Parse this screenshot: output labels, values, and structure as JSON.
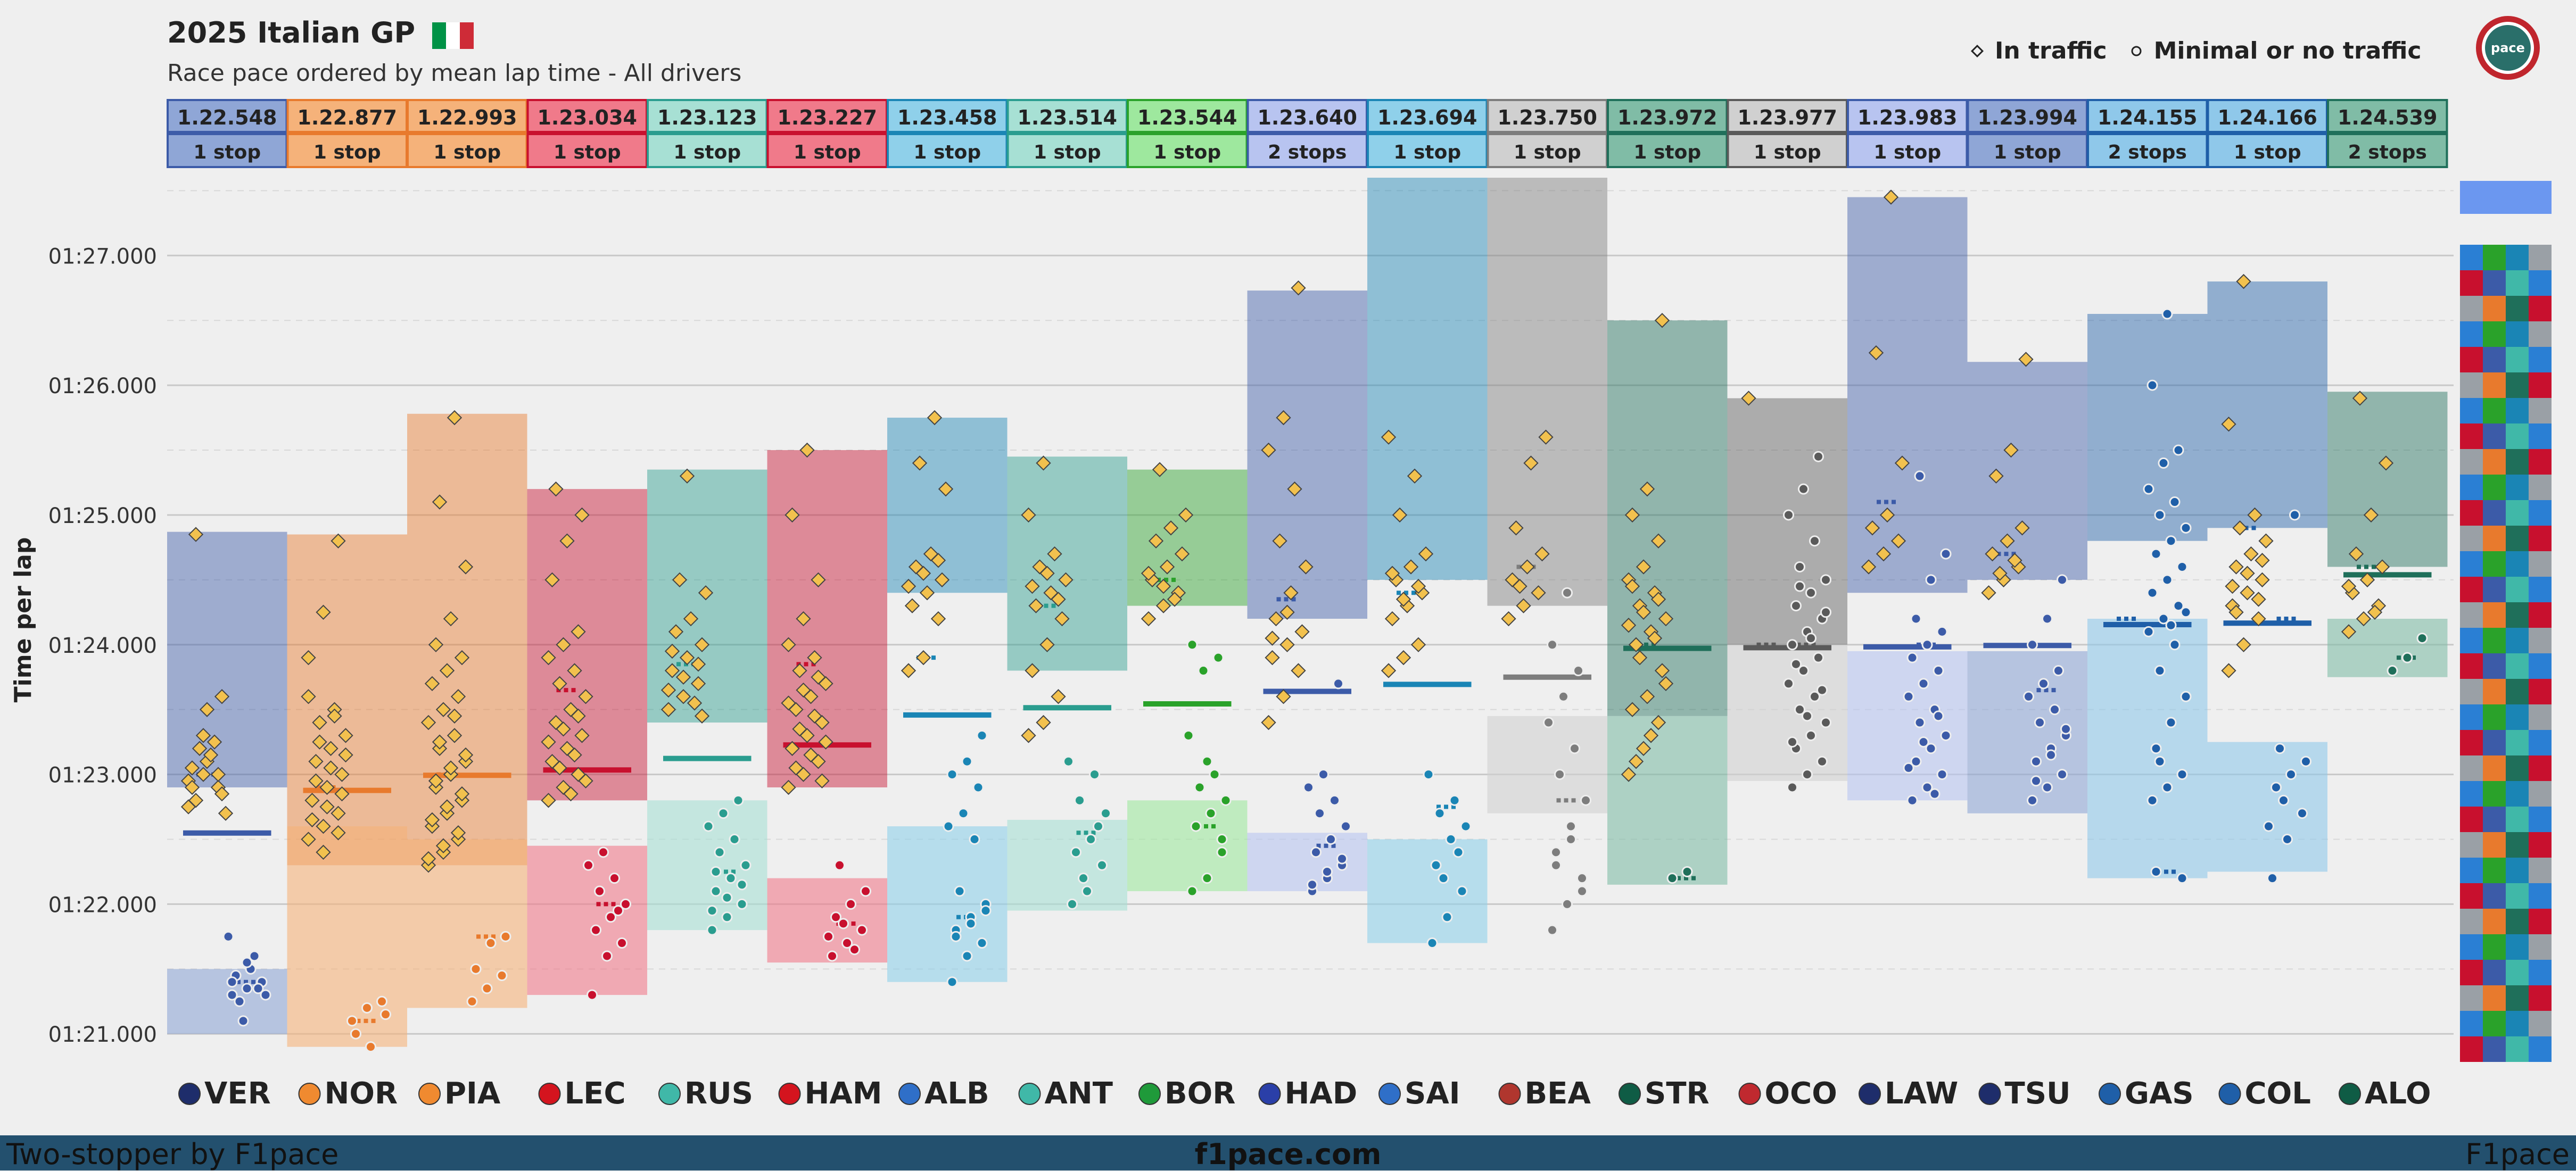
{
  "header": {
    "title": "2025 Italian GP",
    "subtitle": "Race pace ordered by mean lap time - All drivers",
    "flag_colors": [
      "#009246",
      "#ffffff",
      "#ce2b37"
    ]
  },
  "legend": {
    "in_traffic": "In traffic",
    "no_traffic": "Minimal or no traffic"
  },
  "footer": {
    "left": "Two-stopper by F1pace",
    "center": "f1pace.com",
    "right": "F1pace"
  },
  "chart_data": {
    "type": "scatter",
    "ylabel": "Time per lap",
    "ylim_seconds": [
      80.8,
      87.6
    ],
    "yticks": [
      {
        "v": 81,
        "label": "01:21.000"
      },
      {
        "v": 82,
        "label": "01:22.000"
      },
      {
        "v": 83,
        "label": "01:23.000"
      },
      {
        "v": 84,
        "label": "01:24.000"
      },
      {
        "v": 85,
        "label": "01:25.000"
      },
      {
        "v": 86,
        "label": "01:26.000"
      },
      {
        "v": 87,
        "label": "01:27.000"
      }
    ],
    "drivers": [
      {
        "code": "VER",
        "mean": "1.22.548",
        "stops": "1 stop",
        "color": "#3c5ba8",
        "hdr": "#8fa6d6",
        "logo": "#1e2d6b",
        "mean_s": 82.548,
        "traffic": [
          82.95,
          83.0,
          82.9,
          83.05,
          83.1,
          82.85,
          82.8,
          83.15,
          82.7,
          83.2,
          83.25,
          82.75,
          83.3,
          83.0,
          82.9,
          83.5,
          83.6,
          84.85
        ],
        "clear": [
          81.3,
          81.35,
          81.4,
          81.45,
          81.5,
          81.3,
          81.25,
          81.6,
          81.75,
          81.1,
          81.35,
          81.4,
          81.55
        ],
        "tb_min": 82.9,
        "tb_max": 84.87,
        "cb_min": 81.0,
        "cb_max": 81.5,
        "t_mean": 83.0,
        "c_mean": 81.4
      },
      {
        "code": "NOR",
        "mean": "1.22.877",
        "stops": "1 stop",
        "color": "#e87a2d",
        "hdr": "#f5b27a",
        "logo": "#f08a30",
        "mean_s": 82.877,
        "traffic": [
          82.5,
          82.6,
          82.7,
          82.8,
          82.9,
          83.0,
          83.1,
          83.2,
          83.3,
          83.4,
          83.5,
          83.6,
          82.4,
          82.55,
          82.65,
          82.75,
          82.85,
          82.95,
          83.05,
          83.15,
          83.25,
          83.45,
          83.9,
          84.25,
          84.8
        ],
        "clear": [
          81.1,
          81.2,
          81.25,
          81.0,
          80.9,
          81.15
        ],
        "tb_min": 82.3,
        "tb_max": 84.85,
        "cb_min": 80.9,
        "cb_max": 82.6,
        "t_mean": 82.9,
        "c_mean": 81.1
      },
      {
        "code": "PIA",
        "mean": "1.22.993",
        "stops": "1 stop",
        "color": "#e87a2d",
        "hdr": "#f5b27a",
        "logo": "#f08a30",
        "mean_s": 82.993,
        "traffic": [
          82.3,
          82.4,
          82.5,
          82.6,
          82.7,
          82.8,
          82.9,
          83.0,
          83.1,
          83.2,
          83.3,
          83.4,
          83.5,
          83.6,
          83.7,
          83.8,
          83.9,
          84.0,
          84.2,
          84.6,
          85.1,
          85.75,
          82.35,
          82.45,
          82.55,
          82.65,
          82.75,
          82.85,
          82.95,
          83.05,
          83.15,
          83.25,
          83.45
        ],
        "clear": [
          81.25,
          81.35,
          81.45,
          81.5,
          81.7,
          81.75
        ],
        "tb_min": 82.3,
        "tb_max": 85.78,
        "cb_min": 81.2,
        "cb_max": 82.5,
        "t_mean": 83.0,
        "c_mean": 81.75
      },
      {
        "code": "LEC",
        "mean": "1.23.034",
        "stops": "1 stop",
        "color": "#c8102e",
        "hdr": "#f07a8a",
        "logo": "#d4141e",
        "mean_s": 83.034,
        "traffic": [
          82.8,
          82.9,
          83.0,
          83.1,
          83.2,
          83.3,
          83.4,
          83.5,
          83.6,
          83.7,
          83.8,
          83.9,
          84.0,
          84.1,
          84.5,
          84.8,
          85.0,
          85.2,
          82.85,
          82.95,
          83.05,
          83.15,
          83.25,
          83.35,
          83.45
        ],
        "clear": [
          81.3,
          81.6,
          81.7,
          81.8,
          81.9,
          82.0,
          82.1,
          82.2,
          82.3,
          82.4,
          81.95
        ],
        "tb_min": 82.8,
        "tb_max": 85.2,
        "cb_min": 81.3,
        "cb_max": 82.45,
        "t_mean": 83.65,
        "c_mean": 82.0
      },
      {
        "code": "RUS",
        "mean": "1.23.123",
        "stops": "1 stop",
        "color": "#2a9d8f",
        "hdr": "#a7e0d4",
        "logo": "#40b8a8",
        "mean_s": 83.123,
        "traffic": [
          83.5,
          83.6,
          83.7,
          83.8,
          83.9,
          84.0,
          84.1,
          84.2,
          84.4,
          84.5,
          83.55,
          83.65,
          83.75,
          83.85,
          83.95,
          85.3,
          83.45
        ],
        "clear": [
          81.8,
          81.9,
          82.0,
          82.1,
          82.2,
          82.3,
          82.4,
          82.5,
          82.6,
          82.7,
          82.8,
          81.95,
          82.05,
          82.15,
          82.25
        ],
        "tb_min": 83.4,
        "tb_max": 85.35,
        "cb_min": 81.8,
        "cb_max": 82.8,
        "t_mean": 83.85,
        "c_mean": 82.25
      },
      {
        "code": "HAM",
        "mean": "1.23.227",
        "stops": "1 stop",
        "color": "#c8102e",
        "hdr": "#f07a8a",
        "logo": "#d4141e",
        "mean_s": 83.227,
        "traffic": [
          82.9,
          83.0,
          83.1,
          83.2,
          83.3,
          83.4,
          83.5,
          83.6,
          83.7,
          83.8,
          83.9,
          84.0,
          84.2,
          84.5,
          85.0,
          85.5,
          82.95,
          83.05,
          83.15,
          83.25,
          83.35,
          83.45,
          83.55,
          83.65,
          83.75
        ],
        "clear": [
          81.6,
          81.7,
          81.8,
          81.9,
          82.0,
          82.1,
          82.3,
          81.65,
          81.75,
          81.85
        ],
        "tb_min": 82.9,
        "tb_max": 85.5,
        "cb_min": 81.55,
        "cb_max": 82.2,
        "t_mean": 83.85,
        "c_mean": 81.85
      },
      {
        "code": "ALB",
        "mean": "1.23.458",
        "stops": "1 stop",
        "color": "#1a85b5",
        "hdr": "#8fd0ea",
        "logo": "#2f6fc8",
        "mean_s": 83.458,
        "traffic": [
          83.8,
          83.9,
          84.2,
          84.3,
          84.4,
          84.5,
          84.6,
          84.7,
          85.2,
          85.4,
          85.75,
          84.45,
          84.55,
          84.65
        ],
        "clear": [
          81.4,
          81.6,
          81.7,
          81.8,
          81.9,
          82.0,
          82.1,
          82.5,
          82.6,
          82.7,
          82.9,
          83.0,
          83.1,
          83.3,
          81.75,
          81.85,
          81.95
        ],
        "tb_min": 84.4,
        "tb_max": 85.75,
        "cb_min": 81.4,
        "cb_max": 82.6,
        "t_mean": 83.9,
        "c_mean": 81.9
      },
      {
        "code": "ANT",
        "mean": "1.23.514",
        "stops": "1 stop",
        "color": "#2a9d8f",
        "hdr": "#a7e0d4",
        "logo": "#40b8a8",
        "mean_s": 83.514,
        "traffic": [
          83.3,
          83.4,
          83.6,
          83.8,
          84.0,
          84.2,
          84.3,
          84.4,
          84.5,
          84.6,
          84.7,
          85.0,
          85.4,
          84.35,
          84.45,
          84.55
        ],
        "clear": [
          82.0,
          82.1,
          82.3,
          82.4,
          82.5,
          82.7,
          82.8,
          83.0,
          83.1,
          82.2,
          82.6
        ],
        "tb_min": 83.8,
        "tb_max": 85.45,
        "cb_min": 81.95,
        "cb_max": 82.65,
        "t_mean": 84.3,
        "c_mean": 82.55
      },
      {
        "code": "BOR",
        "mean": "1.23.544",
        "stops": "1 stop",
        "color": "#2aa22a",
        "hdr": "#9ee89e",
        "logo": "#1f9a3a",
        "mean_s": 83.544,
        "traffic": [
          84.2,
          84.3,
          84.4,
          84.5,
          84.6,
          84.7,
          84.8,
          84.9,
          85.0,
          85.35,
          84.35,
          84.55,
          84.45
        ],
        "clear": [
          82.1,
          82.2,
          82.4,
          82.6,
          82.7,
          82.8,
          82.9,
          83.0,
          83.3,
          83.8,
          83.9,
          84.0,
          83.1,
          82.5
        ],
        "tb_min": 84.3,
        "tb_max": 85.35,
        "cb_min": 82.1,
        "cb_max": 82.8,
        "t_mean": 84.5,
        "c_mean": 82.6
      },
      {
        "code": "HAD",
        "mean": "1.23.640",
        "stops": "2 stops",
        "color": "#3c5ba8",
        "hdr": "#b8c4f0",
        "logo": "#2a3fa8",
        "mean_s": 83.64,
        "traffic": [
          83.4,
          83.6,
          83.8,
          83.9,
          84.0,
          84.1,
          84.2,
          84.4,
          84.6,
          84.8,
          85.2,
          85.5,
          85.75,
          86.75,
          84.05,
          84.25
        ],
        "clear": [
          82.1,
          82.2,
          82.3,
          82.4,
          82.5,
          82.6,
          82.7,
          82.8,
          82.9,
          83.0,
          83.7,
          82.15,
          82.25,
          82.35
        ],
        "tb_min": 84.2,
        "tb_max": 86.73,
        "cb_min": 82.1,
        "cb_max": 82.55,
        "t_mean": 84.35,
        "c_mean": 82.45
      },
      {
        "code": "SAI",
        "mean": "1.23.694",
        "stops": "1 stop",
        "color": "#1a85b5",
        "hdr": "#8fd0ea",
        "logo": "#2f6fc8",
        "mean_s": 83.694,
        "traffic": [
          83.8,
          83.9,
          84.0,
          84.2,
          84.3,
          84.4,
          84.5,
          84.6,
          84.7,
          85.0,
          85.3,
          85.6,
          84.35,
          84.45,
          84.55
        ],
        "clear": [
          81.7,
          81.9,
          82.1,
          82.3,
          82.5,
          82.6,
          82.7,
          82.8,
          83.0,
          82.2,
          82.4
        ],
        "tb_min": 84.5,
        "tb_max": 87.6,
        "cb_min": 81.7,
        "cb_max": 82.5,
        "t_mean": 84.4,
        "c_mean": 82.75
      },
      {
        "code": "BEA",
        "mean": "1.23.750",
        "stops": "1 stop",
        "color": "#7d7d7d",
        "hdr": "#d0d0d0",
        "logo": "#b0362e",
        "mean_s": 83.75,
        "traffic": [
          84.2,
          84.3,
          84.4,
          84.5,
          84.6,
          84.7,
          84.9,
          85.4,
          85.6,
          84.45
        ],
        "clear": [
          81.8,
          82.0,
          82.2,
          82.4,
          82.6,
          82.8,
          83.0,
          83.2,
          83.4,
          83.6,
          83.8,
          84.0,
          84.4,
          82.1,
          82.3,
          82.5
        ],
        "tb_min": 84.3,
        "tb_max": 87.6,
        "cb_min": 82.7,
        "cb_max": 83.45,
        "t_mean": 84.6,
        "c_mean": 82.8
      },
      {
        "code": "STR",
        "mean": "1.23.972",
        "stops": "1 stop",
        "color": "#1f6f5a",
        "hdr": "#80bca6",
        "logo": "#0f5c45",
        "mean_s": 83.972,
        "traffic": [
          83.0,
          83.2,
          83.4,
          83.5,
          83.6,
          83.8,
          84.0,
          84.1,
          84.2,
          84.3,
          84.4,
          84.5,
          84.6,
          84.8,
          85.0,
          85.2,
          86.5,
          83.1,
          83.3,
          83.7,
          83.9,
          84.05,
          84.15,
          84.25,
          84.35,
          84.45
        ],
        "clear": [
          82.2,
          82.25
        ],
        "tb_min": 83.45,
        "tb_max": 86.5,
        "cb_min": 82.15,
        "cb_max": 83.45,
        "t_mean": 84.0,
        "c_mean": 82.2
      },
      {
        "code": "OCO",
        "mean": "1.23.977",
        "stops": "1 stop",
        "color": "#5a5a5a",
        "hdr": "#d0d0d0",
        "logo": "#c0292f",
        "mean_s": 83.977,
        "traffic": [
          85.9
        ],
        "clear": [
          82.9,
          83.0,
          83.1,
          83.2,
          83.3,
          83.4,
          83.5,
          83.6,
          83.7,
          83.8,
          83.9,
          84.0,
          84.1,
          84.2,
          84.3,
          84.4,
          84.5,
          84.6,
          84.8,
          85.0,
          85.2,
          85.45,
          83.25,
          83.45,
          83.65,
          83.85,
          84.05,
          84.25,
          84.45
        ],
        "tb_min": 84.0,
        "tb_max": 85.9,
        "cb_min": 82.95,
        "cb_max": 84.0,
        "t_mean": 84.0,
        "c_mean": 84.0
      },
      {
        "code": "LAW",
        "mean": "1.23.983",
        "stops": "1 stop",
        "color": "#3c5ba8",
        "hdr": "#b8c4f0",
        "logo": "#1e2d6b",
        "mean_s": 83.983,
        "traffic": [
          84.6,
          84.7,
          84.8,
          84.9,
          85.0,
          85.4,
          86.25,
          87.45
        ],
        "clear": [
          82.8,
          82.9,
          83.0,
          83.1,
          83.2,
          83.3,
          83.4,
          83.5,
          83.6,
          83.7,
          83.8,
          83.9,
          84.0,
          84.1,
          84.2,
          84.5,
          84.7,
          85.3,
          82.85,
          83.05,
          83.25,
          83.45
        ],
        "tb_min": 84.4,
        "tb_max": 87.45,
        "cb_min": 82.8,
        "cb_max": 83.95,
        "t_mean": 85.1,
        "c_mean": 84.0
      },
      {
        "code": "TSU",
        "mean": "1.23.994",
        "stops": "1 stop",
        "color": "#3c5ba8",
        "hdr": "#8fa6d6",
        "logo": "#1e2d6b",
        "mean_s": 83.994,
        "traffic": [
          84.4,
          84.5,
          84.6,
          84.7,
          84.8,
          84.9,
          85.3,
          85.5,
          86.2,
          84.55,
          84.65
        ],
        "clear": [
          82.8,
          82.9,
          83.0,
          83.1,
          83.2,
          83.3,
          83.4,
          83.5,
          83.6,
          83.7,
          83.8,
          84.0,
          84.2,
          84.5,
          82.95,
          83.15,
          83.35
        ],
        "tb_min": 84.5,
        "tb_max": 86.18,
        "cb_min": 82.7,
        "cb_max": 83.95,
        "t_mean": 84.7,
        "c_mean": 83.65
      },
      {
        "code": "GAS",
        "mean": "1.24.155",
        "stops": "2 stops",
        "color": "#1f5fa8",
        "hdr": "#8fc8ea",
        "logo": "#1f5fa8",
        "mean_s": 84.155,
        "traffic": [],
        "clear": [
          82.8,
          82.9,
          83.0,
          83.2,
          83.4,
          83.6,
          83.8,
          84.0,
          84.1,
          84.2,
          84.3,
          84.4,
          84.5,
          84.6,
          84.7,
          84.8,
          84.9,
          85.0,
          85.1,
          85.2,
          85.4,
          85.5,
          86.0,
          86.55,
          82.2,
          82.25,
          84.15,
          84.25,
          83.1
        ],
        "tb_min": 84.8,
        "tb_max": 86.55,
        "cb_min": 82.2,
        "cb_max": 84.2,
        "t_mean": 84.2,
        "c_mean": 82.25
      },
      {
        "code": "COL",
        "mean": "1.24.166",
        "stops": "1 stop",
        "color": "#1f5fa8",
        "hdr": "#8fc8ea",
        "logo": "#1f5fa8",
        "mean_s": 84.166,
        "traffic": [
          83.8,
          84.0,
          84.2,
          84.3,
          84.4,
          84.5,
          84.6,
          84.7,
          84.8,
          84.9,
          85.0,
          85.7,
          86.8,
          84.35,
          84.45,
          84.55,
          84.65,
          84.25
        ],
        "clear": [
          82.2,
          82.5,
          82.7,
          82.9,
          83.0,
          83.1,
          83.2,
          85.0,
          82.6,
          82.8
        ],
        "tb_min": 84.9,
        "tb_max": 86.8,
        "cb_min": 82.25,
        "cb_max": 83.25,
        "t_mean": 84.9,
        "c_mean": 84.2
      },
      {
        "code": "ALO",
        "mean": "1.24.539",
        "stops": "2 stops",
        "color": "#1f6f5a",
        "hdr": "#80bca6",
        "logo": "#0f5c45",
        "mean_s": 84.539,
        "traffic": [
          84.1,
          84.2,
          84.3,
          84.4,
          84.5,
          84.6,
          84.7,
          85.0,
          85.4,
          85.9,
          84.25,
          84.45
        ],
        "clear": [
          83.8,
          83.9,
          84.05
        ],
        "tb_min": 84.6,
        "tb_max": 85.95,
        "cb_min": 83.75,
        "cb_max": 84.2,
        "t_mean": 84.6,
        "c_mean": 83.9
      }
    ]
  }
}
